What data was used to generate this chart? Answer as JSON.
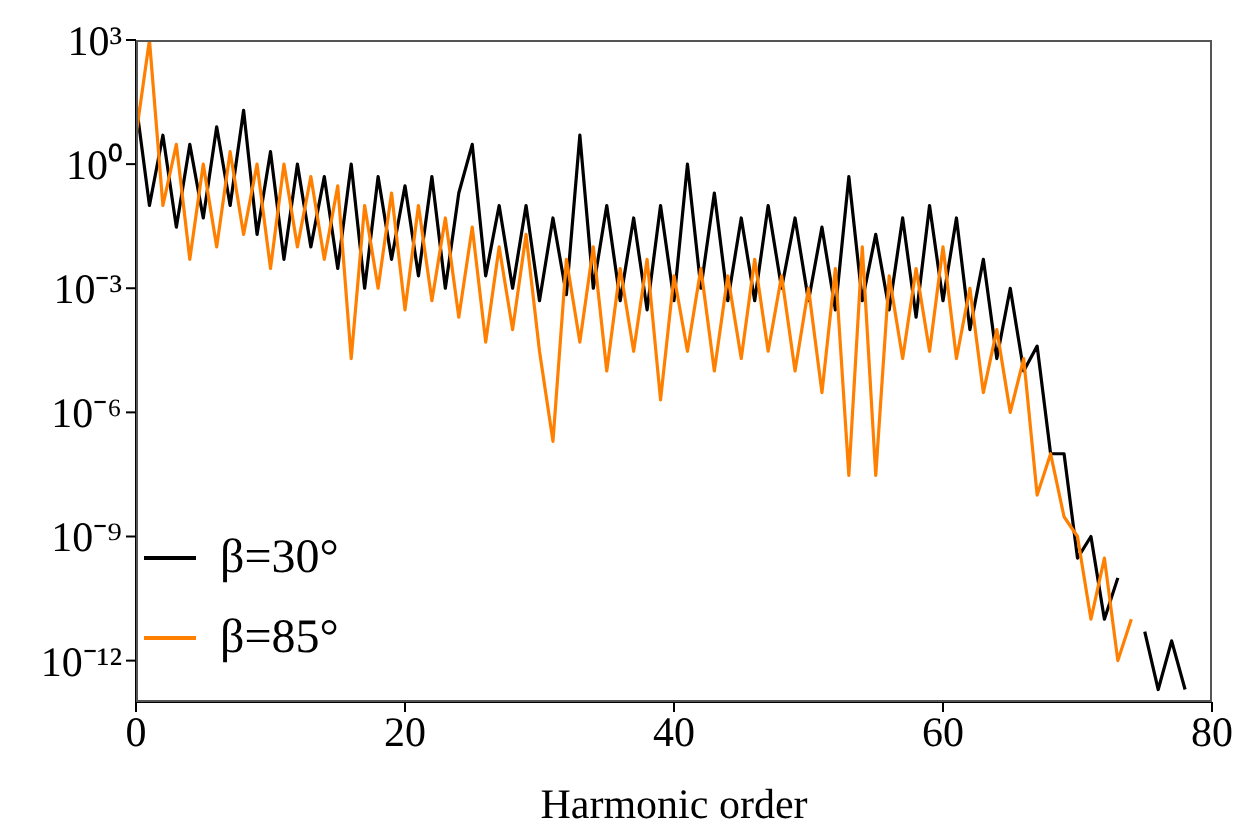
{
  "chart_data": {
    "type": "line",
    "xlabel": "Harmonic order",
    "log": "y",
    "xlim": [
      0,
      80
    ],
    "xticks": [
      0,
      20,
      40,
      60,
      80
    ],
    "ylim": [
      1e-13,
      1000
    ],
    "yticks": [
      {
        "value": 1000,
        "label": "10³"
      },
      {
        "value": 1,
        "label": "10⁰"
      },
      {
        "value": 0.001,
        "label": "10⁻³"
      },
      {
        "value": 1e-06,
        "label": "10⁻⁶"
      },
      {
        "value": 1e-09,
        "label": "10⁻⁹"
      },
      {
        "value": 1e-12,
        "label": "10⁻¹²"
      }
    ],
    "legend": "bottom left",
    "marker": "none",
    "line_style": "solid",
    "series": [
      {
        "name": "β=30°",
        "color": "#000000",
        "x": [
          0,
          1,
          2,
          3,
          4,
          5,
          6,
          7,
          8,
          9,
          10,
          11,
          12,
          13,
          14,
          15,
          16,
          17,
          18,
          19,
          20,
          21,
          22,
          23,
          24,
          25,
          26,
          27,
          28,
          29,
          30,
          31,
          32,
          33,
          34,
          35,
          36,
          37,
          38,
          39,
          40,
          41,
          42,
          43,
          44,
          45,
          46,
          47,
          48,
          49,
          50,
          51,
          52,
          53,
          54,
          55,
          56,
          57,
          58,
          59,
          60,
          61,
          62,
          63,
          64,
          65,
          66,
          67,
          68,
          69,
          70,
          71,
          72,
          73,
          74,
          75,
          76,
          77,
          78
        ],
        "values": [
          30,
          0.1,
          5,
          0.03,
          3,
          0.05,
          8,
          0.1,
          20,
          0.02,
          2,
          0.005,
          1,
          0.01,
          0.5,
          0.003,
          1,
          0.001,
          0.5,
          0.005,
          0.3,
          0.002,
          0.5,
          0.001,
          0.2,
          3,
          0.002,
          0.1,
          0.001,
          0.1,
          0.0005,
          0.05,
          0.0007,
          5,
          0.001,
          0.1,
          0.0005,
          0.05,
          0.0003,
          0.1,
          0.0005,
          1,
          0.001,
          0.2,
          0.0005,
          0.05,
          0.0005,
          0.1,
          0.001,
          0.05,
          0.0005,
          0.03,
          0.0003,
          0.5,
          0.0005,
          0.02,
          0.0003,
          0.05,
          0.0002,
          0.1,
          0.0005,
          0.05,
          0.0001,
          0.005,
          2e-05,
          0.001,
          1e-05,
          4e-05,
          1e-07,
          1e-07,
          3e-10,
          1e-09,
          1e-11,
          1e-10,
          null,
          5e-12,
          2e-13,
          3e-12,
          2e-13
        ]
      },
      {
        "name": "β=85°",
        "color": "#ff8000",
        "x": [
          0,
          1,
          2,
          3,
          4,
          5,
          6,
          7,
          8,
          9,
          10,
          11,
          12,
          13,
          14,
          15,
          16,
          17,
          18,
          19,
          20,
          21,
          22,
          23,
          24,
          25,
          26,
          27,
          28,
          29,
          30,
          31,
          32,
          33,
          34,
          35,
          36,
          37,
          38,
          39,
          40,
          41,
          42,
          43,
          44,
          45,
          46,
          47,
          48,
          49,
          50,
          51,
          52,
          53,
          54,
          55,
          56,
          57,
          58,
          59,
          60,
          61,
          62,
          63,
          64,
          65,
          66,
          67,
          68,
          69,
          70,
          71,
          72,
          73,
          74
        ],
        "values": [
          5,
          1000,
          0.1,
          3,
          0.005,
          1,
          0.01,
          2,
          0.02,
          1,
          0.003,
          1,
          0.01,
          0.5,
          0.005,
          0.3,
          2e-05,
          0.1,
          0.001,
          0.2,
          0.0003,
          0.1,
          0.0005,
          0.05,
          0.0002,
          0.03,
          5e-05,
          0.01,
          0.0001,
          0.02,
          3e-05,
          2e-07,
          0.005,
          5e-05,
          0.01,
          1e-05,
          0.003,
          3e-05,
          0.005,
          2e-06,
          0.002,
          3e-05,
          0.003,
          1e-05,
          0.002,
          2e-05,
          0.005,
          3e-05,
          0.002,
          1e-05,
          0.001,
          3e-06,
          0.003,
          3e-08,
          0.01,
          3e-08,
          0.002,
          2e-05,
          0.003,
          3e-05,
          0.01,
          2e-05,
          0.001,
          3e-06,
          0.0001,
          1e-06,
          2e-05,
          1e-08,
          1e-07,
          3e-09,
          1e-09,
          1e-11,
          3e-10,
          1e-12,
          1e-11
        ]
      }
    ]
  }
}
